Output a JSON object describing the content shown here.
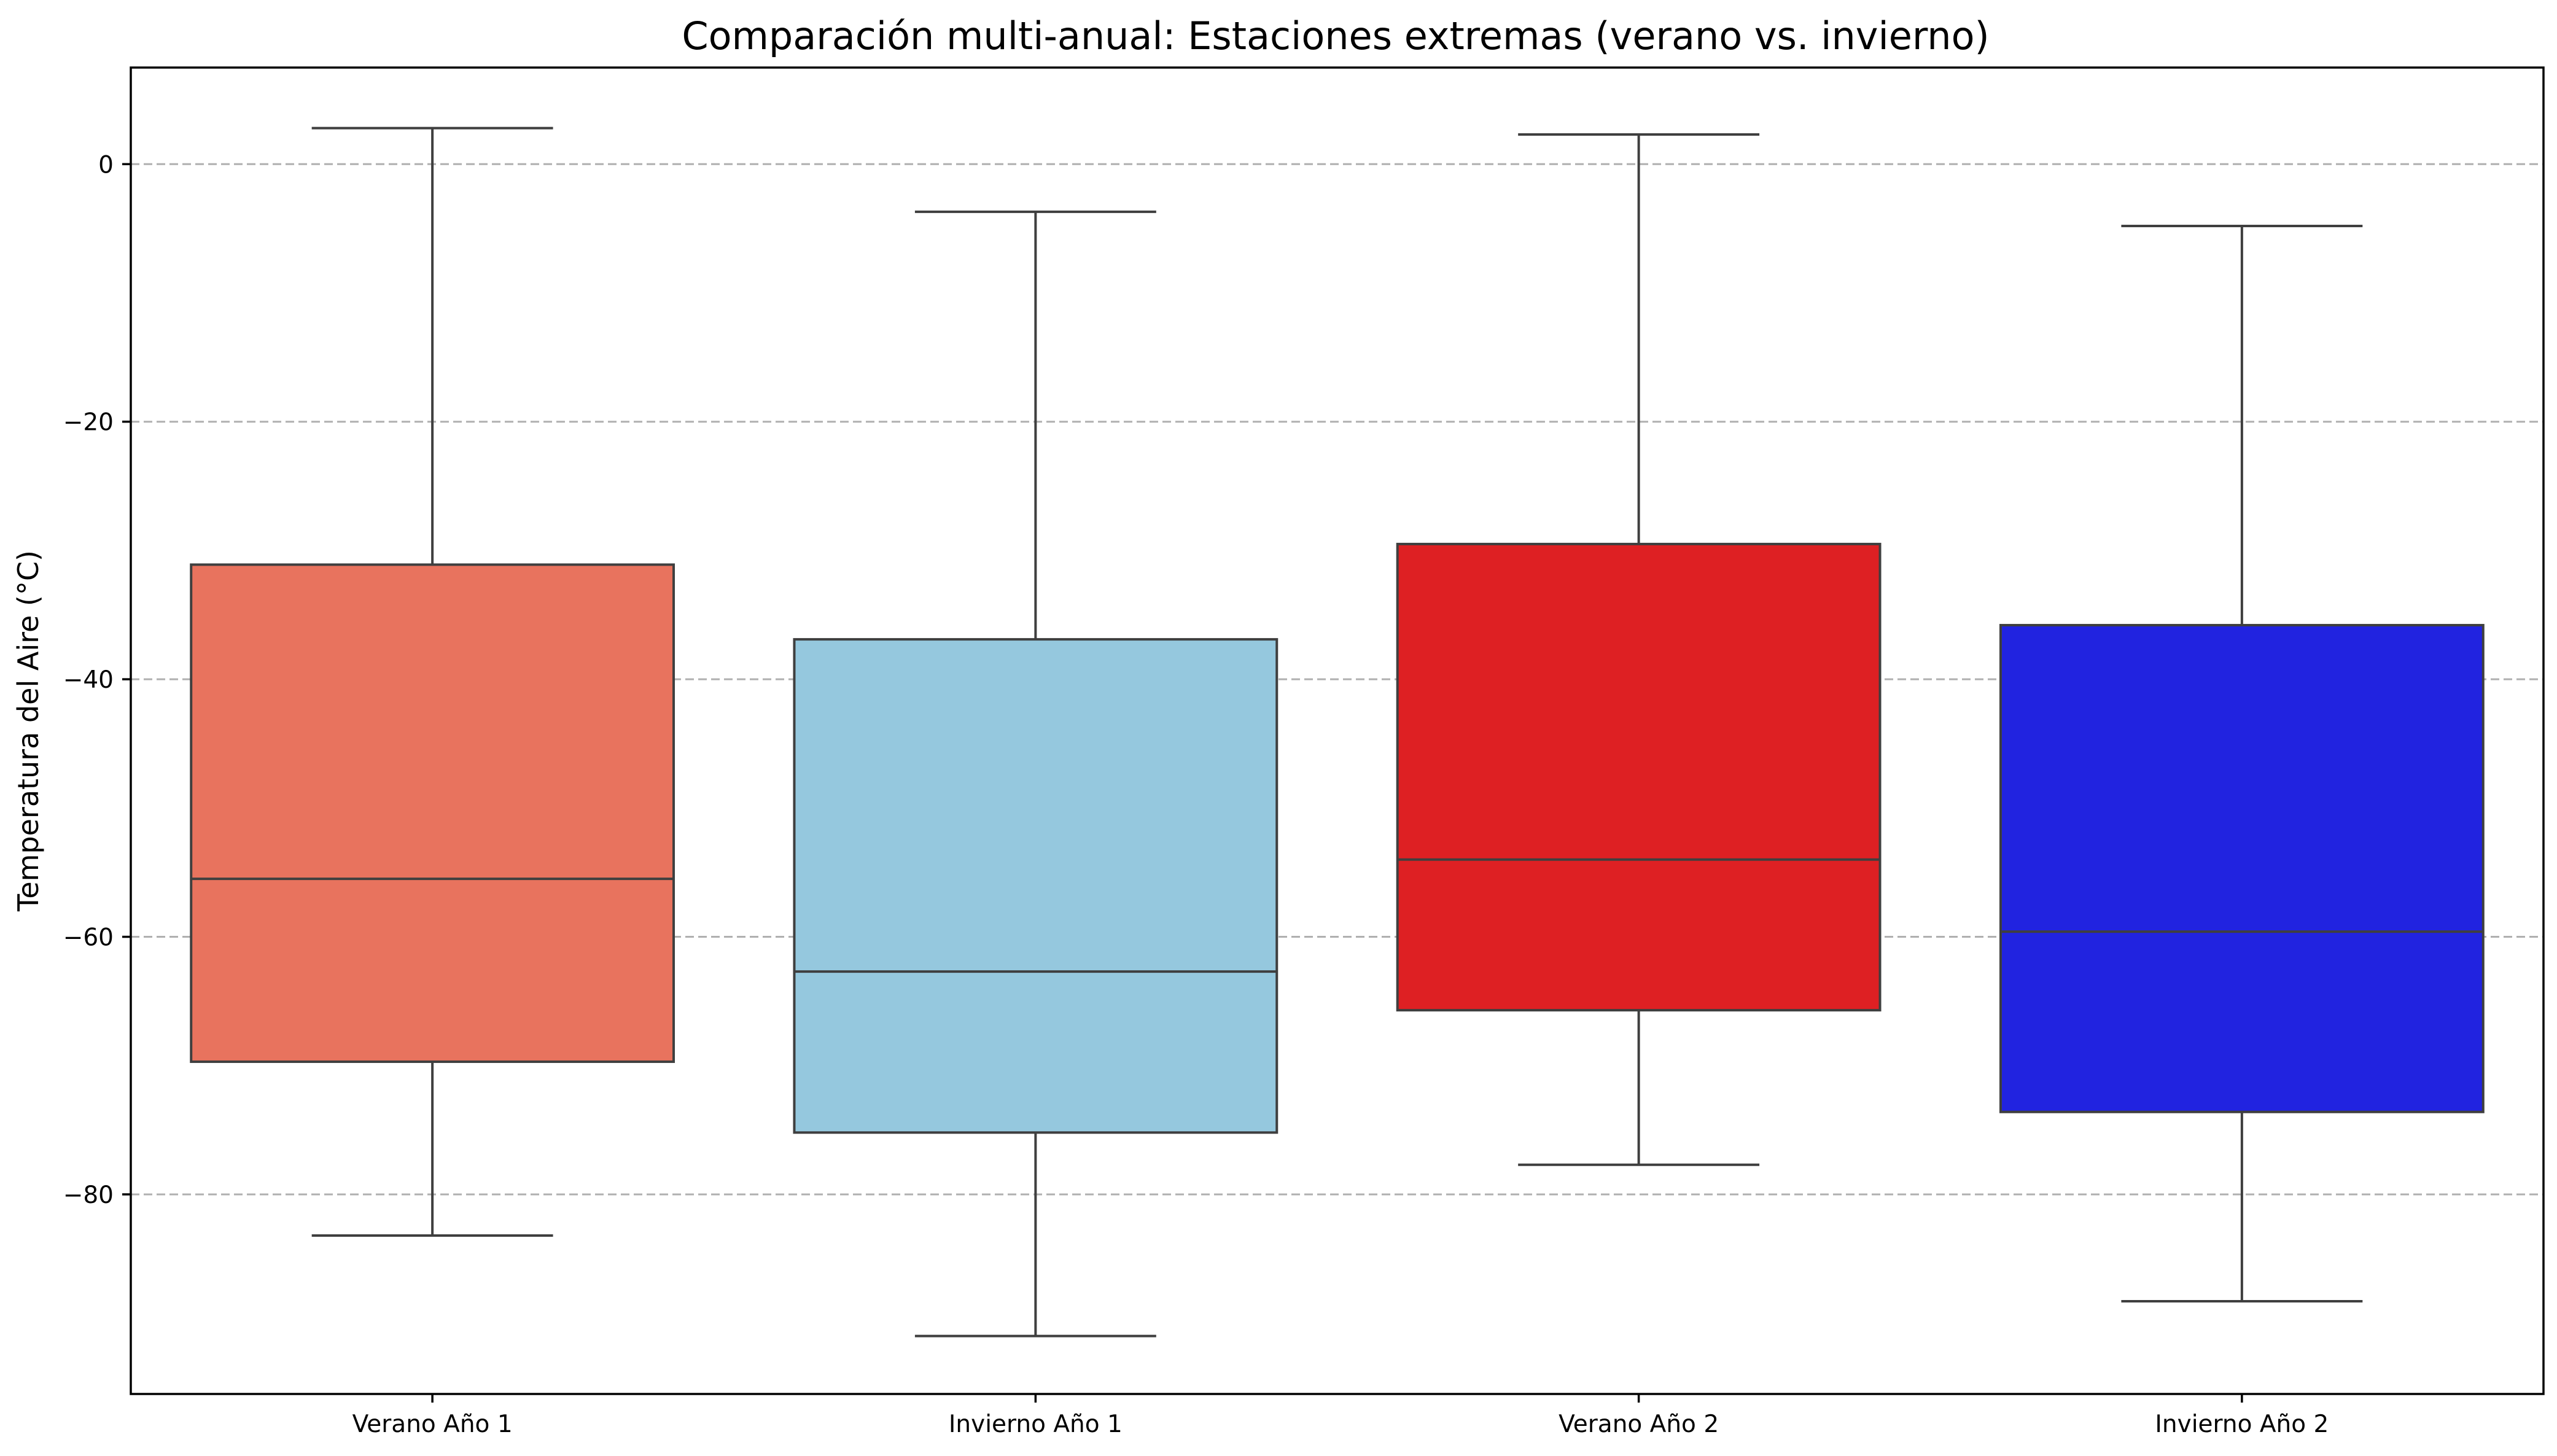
{
  "chart_data": {
    "type": "box",
    "title": "Comparación multi-anual: Estaciones extremas (verano vs. invierno)",
    "ylabel": "Temperatura del Aire (°C)",
    "xlabel": "",
    "ylim": [
      -95.5,
      7.5
    ],
    "yticks": [
      0,
      -20,
      -40,
      -60,
      -80
    ],
    "ytick_labels": [
      "0",
      "−20",
      "−40",
      "−60",
      "−80"
    ],
    "grid": "y-dashed",
    "categories": [
      "Verano Año 1",
      "Invierno Año 1",
      "Verano Año 2",
      "Invierno Año 2"
    ],
    "boxes": [
      {
        "category": "Verano Año 1",
        "whisker_high": 2.8,
        "q3": -31.1,
        "median": -55.5,
        "q1": -69.7,
        "whisker_low": -83.2,
        "color": "#e8735e"
      },
      {
        "category": "Invierno Año 1",
        "whisker_high": -3.7,
        "q3": -36.9,
        "median": -62.7,
        "q1": -75.2,
        "whisker_low": -91.0,
        "color": "#95c8de"
      },
      {
        "category": "Verano Año 2",
        "whisker_high": 2.3,
        "q3": -29.5,
        "median": -54.0,
        "q1": -65.7,
        "whisker_low": -77.7,
        "color": "#de2023"
      },
      {
        "category": "Invierno Año 2",
        "whisker_high": -4.8,
        "q3": -35.8,
        "median": -59.6,
        "q1": -73.6,
        "whisker_low": -88.3,
        "color": "#2123e0"
      }
    ]
  }
}
